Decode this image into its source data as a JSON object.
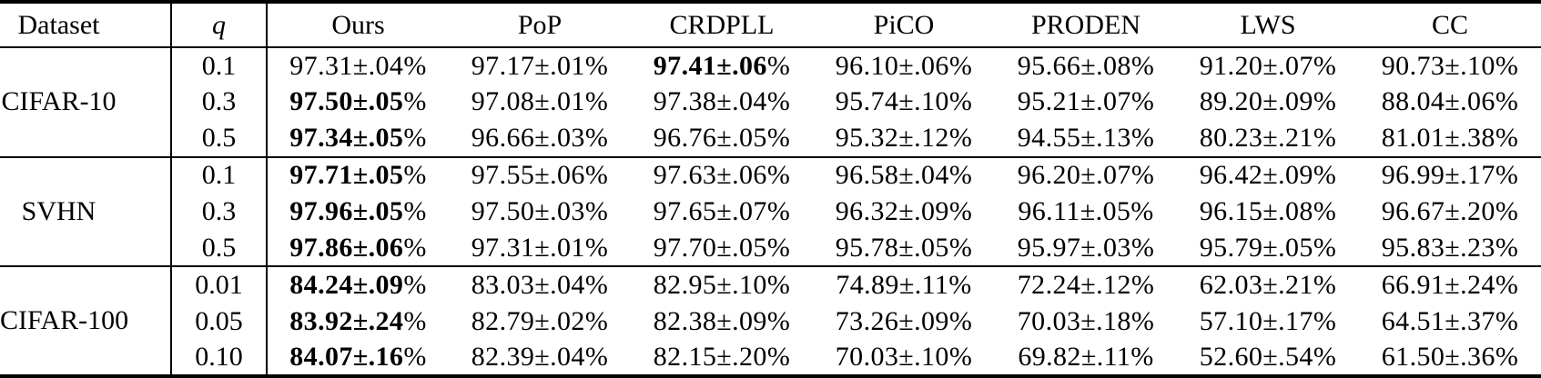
{
  "header": {
    "dataset": "Dataset",
    "q": "q",
    "methods": [
      "Ours",
      "PoP",
      "CRDPLL",
      "PiCO",
      "PRODEN",
      "LWS",
      "CC"
    ]
  },
  "percent": "%",
  "sections": [
    {
      "dataset": "CIFAR-10",
      "rows": [
        {
          "q": "0.1",
          "cells": [
            {
              "v": "97.31±.04",
              "bold": false
            },
            {
              "v": "97.17±.01",
              "bold": false
            },
            {
              "v": "97.41±.06",
              "bold": true
            },
            {
              "v": "96.10±.06",
              "bold": false
            },
            {
              "v": "95.66±.08",
              "bold": false
            },
            {
              "v": "91.20±.07",
              "bold": false
            },
            {
              "v": "90.73±.10",
              "bold": false
            }
          ]
        },
        {
          "q": "0.3",
          "cells": [
            {
              "v": "97.50±.05",
              "bold": true
            },
            {
              "v": "97.08±.01",
              "bold": false
            },
            {
              "v": "97.38±.04",
              "bold": false
            },
            {
              "v": "95.74±.10",
              "bold": false
            },
            {
              "v": "95.21±.07",
              "bold": false
            },
            {
              "v": "89.20±.09",
              "bold": false
            },
            {
              "v": "88.04±.06",
              "bold": false
            }
          ]
        },
        {
          "q": "0.5",
          "cells": [
            {
              "v": "97.34±.05",
              "bold": true
            },
            {
              "v": "96.66±.03",
              "bold": false
            },
            {
              "v": "96.76±.05",
              "bold": false
            },
            {
              "v": "95.32±.12",
              "bold": false
            },
            {
              "v": "94.55±.13",
              "bold": false
            },
            {
              "v": "80.23±.21",
              "bold": false
            },
            {
              "v": "81.01±.38",
              "bold": false
            }
          ]
        }
      ]
    },
    {
      "dataset": "SVHN",
      "rows": [
        {
          "q": "0.1",
          "cells": [
            {
              "v": "97.71±.05",
              "bold": true
            },
            {
              "v": "97.55±.06",
              "bold": false
            },
            {
              "v": "97.63±.06",
              "bold": false
            },
            {
              "v": "96.58±.04",
              "bold": false
            },
            {
              "v": "96.20±.07",
              "bold": false
            },
            {
              "v": "96.42±.09",
              "bold": false
            },
            {
              "v": "96.99±.17",
              "bold": false
            }
          ]
        },
        {
          "q": "0.3",
          "cells": [
            {
              "v": "97.96±.05",
              "bold": true
            },
            {
              "v": "97.50±.03",
              "bold": false
            },
            {
              "v": "97.65±.07",
              "bold": false
            },
            {
              "v": "96.32±.09",
              "bold": false
            },
            {
              "v": "96.11±.05",
              "bold": false
            },
            {
              "v": "96.15±.08",
              "bold": false
            },
            {
              "v": "96.67±.20",
              "bold": false
            }
          ]
        },
        {
          "q": "0.5",
          "cells": [
            {
              "v": "97.86±.06",
              "bold": true
            },
            {
              "v": "97.31±.01",
              "bold": false
            },
            {
              "v": "97.70±.05",
              "bold": false
            },
            {
              "v": "95.78±.05",
              "bold": false
            },
            {
              "v": "95.97±.03",
              "bold": false
            },
            {
              "v": "95.79±.05",
              "bold": false
            },
            {
              "v": "95.83±.23",
              "bold": false
            }
          ]
        }
      ]
    },
    {
      "dataset": "CIFAR-100",
      "rows": [
        {
          "q": "0.01",
          "cells": [
            {
              "v": "84.24±.09",
              "bold": true
            },
            {
              "v": "83.03±.04",
              "bold": false
            },
            {
              "v": "82.95±.10",
              "bold": false
            },
            {
              "v": "74.89±.11",
              "bold": false
            },
            {
              "v": "72.24±.12",
              "bold": false
            },
            {
              "v": "62.03±.21",
              "bold": false
            },
            {
              "v": "66.91±.24",
              "bold": false
            }
          ]
        },
        {
          "q": "0.05",
          "cells": [
            {
              "v": "83.92±.24",
              "bold": true
            },
            {
              "v": "82.79±.02",
              "bold": false
            },
            {
              "v": "82.38±.09",
              "bold": false
            },
            {
              "v": "73.26±.09",
              "bold": false
            },
            {
              "v": "70.03±.18",
              "bold": false
            },
            {
              "v": "57.10±.17",
              "bold": false
            },
            {
              "v": "64.51±.37",
              "bold": false
            }
          ]
        },
        {
          "q": "0.10",
          "cells": [
            {
              "v": "84.07±.16",
              "bold": true
            },
            {
              "v": "82.39±.04",
              "bold": false
            },
            {
              "v": "82.15±.20",
              "bold": false
            },
            {
              "v": "70.03±.10",
              "bold": false
            },
            {
              "v": "69.82±.11",
              "bold": false
            },
            {
              "v": "52.60±.54",
              "bold": false
            },
            {
              "v": "61.50±.36",
              "bold": false
            }
          ]
        }
      ]
    }
  ],
  "colors": {
    "text": "#000000",
    "background": "#ffffff",
    "rule": "#000000"
  }
}
